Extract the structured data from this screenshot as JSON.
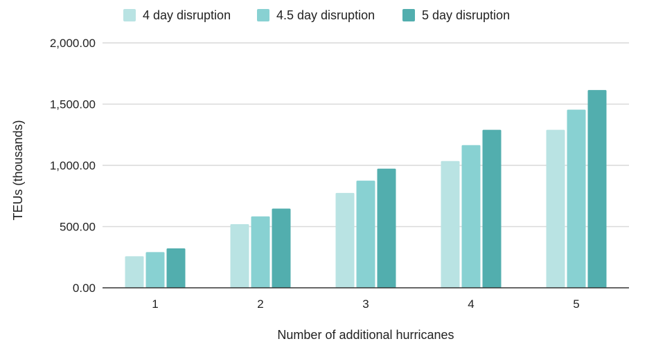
{
  "chart_data": {
    "type": "bar",
    "categories": [
      "1",
      "2",
      "3",
      "4",
      "5"
    ],
    "series": [
      {
        "name": "4 day disruption",
        "color": "#b9e3e3",
        "values": [
          258,
          520,
          775,
          1035,
          1290
        ]
      },
      {
        "name": "4.5 day disruption",
        "color": "#88d1d2",
        "values": [
          292,
          583,
          875,
          1165,
          1455
        ]
      },
      {
        "name": "5 day disruption",
        "color": "#52aeae",
        "values": [
          322,
          647,
          973,
          1290,
          1615
        ]
      }
    ],
    "title": "",
    "xlabel": "Number of additional hurricanes",
    "ylabel": "TEUs (thousands)",
    "ylim": [
      0,
      2000
    ],
    "yticks": [
      0,
      500,
      1000,
      1500,
      2000
    ],
    "ytick_labels": [
      "0.00",
      "500.00",
      "1,000.00",
      "1,500.00",
      "2,000.00"
    ],
    "grid": true,
    "legend_position": "top"
  }
}
